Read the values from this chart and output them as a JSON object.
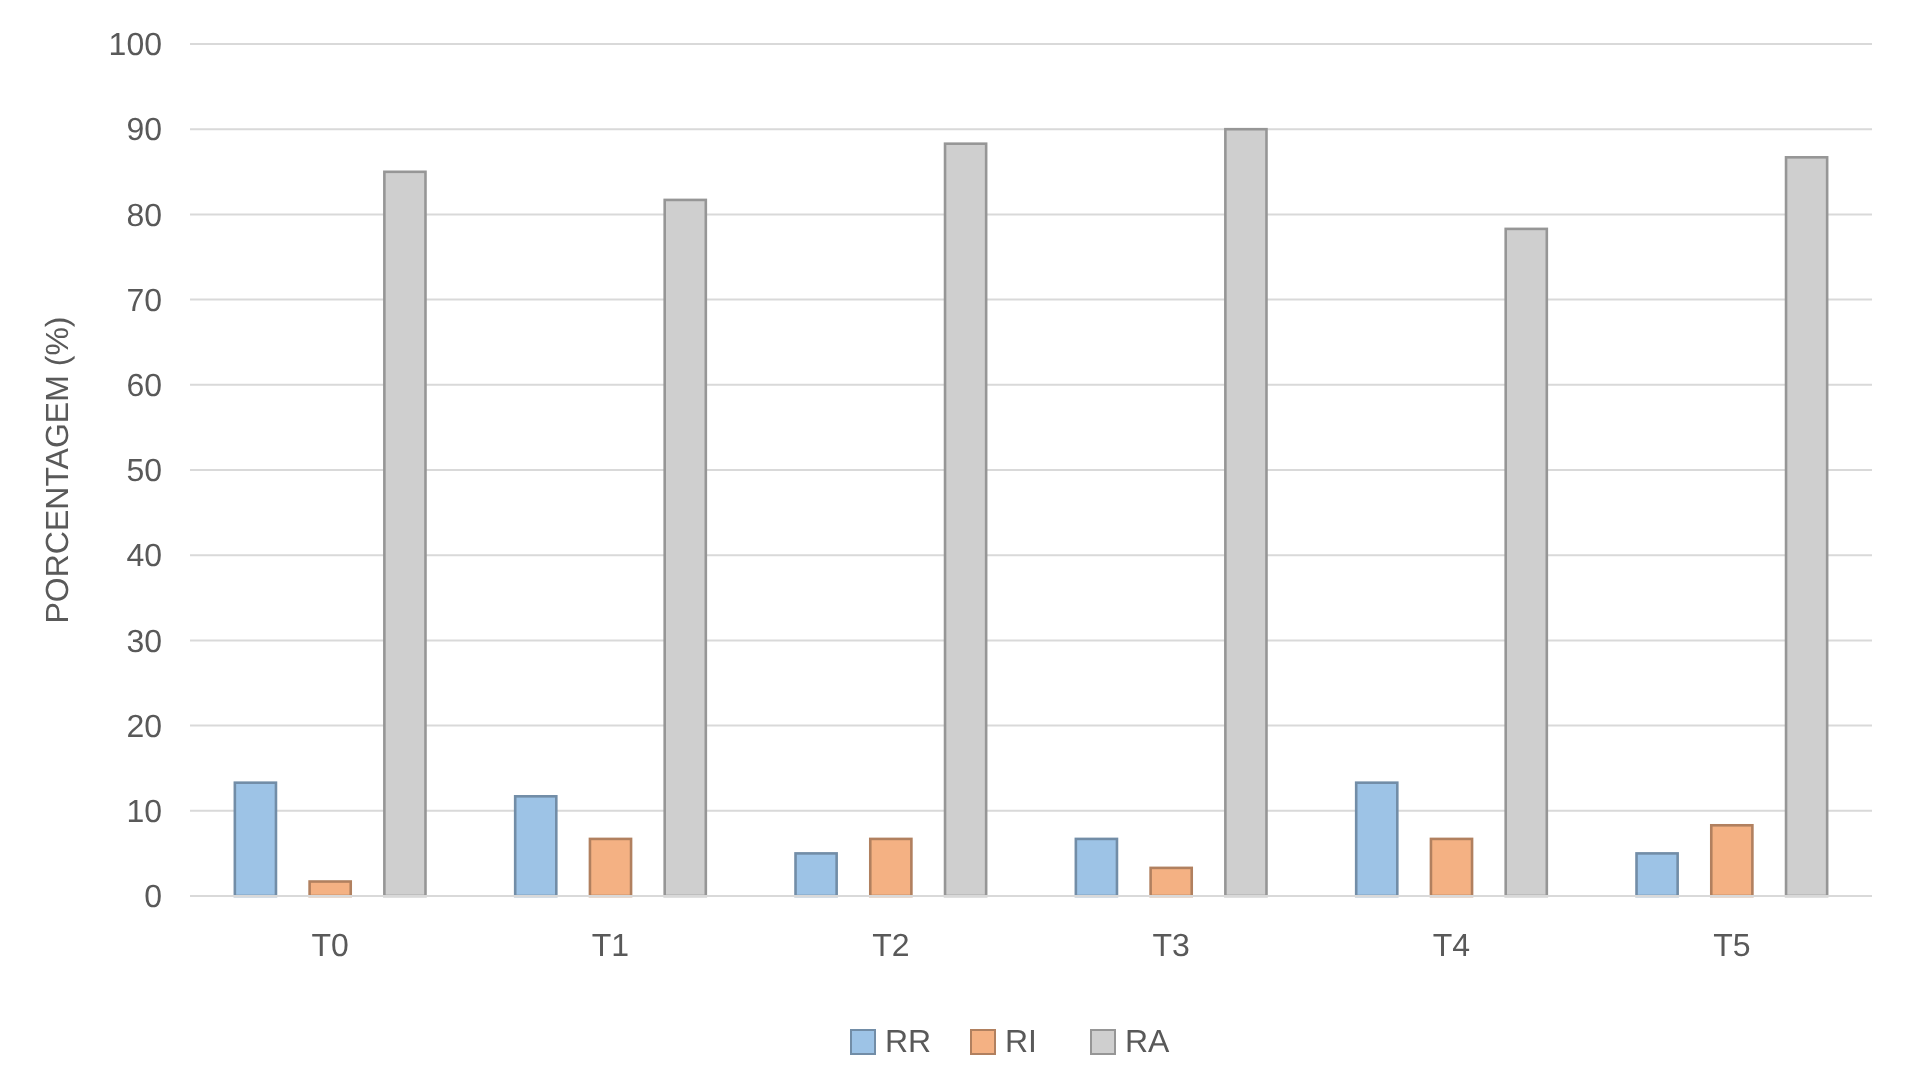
{
  "chart_data": {
    "type": "bar",
    "ylabel": "PORCENTAGEM (%)",
    "categories": [
      "T0",
      "T1",
      "T2",
      "T3",
      "T4",
      "T5"
    ],
    "series": [
      {
        "name": "RR",
        "color": "#9dc3e6",
        "values": [
          13.3,
          11.7,
          5,
          6.7,
          13.3,
          5
        ]
      },
      {
        "name": "RI",
        "color": "#f4b183",
        "values": [
          1.7,
          6.7,
          6.7,
          3.3,
          6.7,
          8.3
        ]
      },
      {
        "name": "RA",
        "color": "#cfcfcf",
        "values": [
          85,
          81.7,
          88.3,
          90,
          78.3,
          86.7
        ]
      }
    ],
    "ylim": [
      0,
      100
    ],
    "yticks": [
      0,
      10,
      20,
      30,
      40,
      50,
      60,
      70,
      80,
      90,
      100
    ],
    "grid": "y",
    "legend": "bottom"
  }
}
